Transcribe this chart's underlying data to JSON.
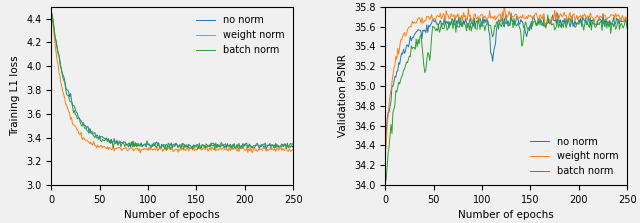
{
  "left_plot": {
    "xlabel": "Number of epochs",
    "ylabel": "Training L1 loss",
    "xlim": [
      0,
      250
    ],
    "ylim": [
      3.0,
      4.5
    ],
    "yticks": [
      3.0,
      3.2,
      3.4,
      3.6,
      3.8,
      4.0,
      4.2,
      4.4
    ],
    "xticks": [
      0,
      50,
      100,
      150,
      200,
      250
    ],
    "colors": {
      "no_norm": "#1f77b4",
      "weight_norm": "#ff7f0e",
      "batch_norm": "#2ca02c"
    },
    "legend": [
      "no norm",
      "weight norm",
      "batch norm"
    ],
    "legend_loc": "upper right"
  },
  "right_plot": {
    "xlabel": "Number of epochs",
    "ylabel": "Validation PSNR",
    "xlim": [
      0,
      250
    ],
    "ylim": [
      34.0,
      35.8
    ],
    "yticks": [
      34.0,
      34.2,
      34.4,
      34.6,
      34.8,
      35.0,
      35.2,
      35.4,
      35.6,
      35.8
    ],
    "xticks": [
      0,
      50,
      100,
      150,
      200,
      250
    ],
    "colors": {
      "no_norm": "#1f77b4",
      "weight_norm": "#ff7f0e",
      "batch_norm": "#2ca02c"
    },
    "legend": [
      "no norm",
      "weight norm",
      "batch norm"
    ],
    "legend_loc": "lower right"
  },
  "figsize": [
    6.4,
    2.23
  ],
  "dpi": 100,
  "n_epochs": 250
}
